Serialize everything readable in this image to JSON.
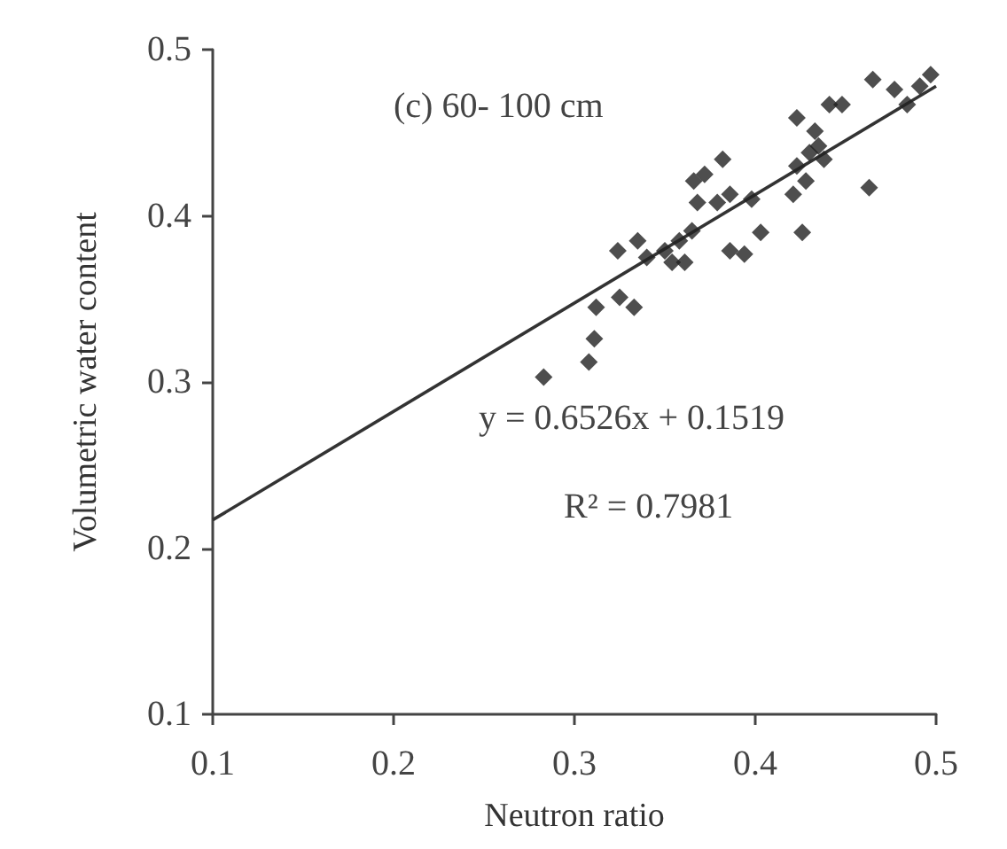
{
  "chart_data": {
    "type": "scatter",
    "xlabel": "Neutron ratio",
    "ylabel": "Volumetric water content",
    "annotations": [
      "(c) 60- 100 cm",
      "y = 0.6526x + 0.1519",
      "R² = 0.7981"
    ],
    "xlim": [
      0.1,
      0.5
    ],
    "ylim": [
      0.1,
      0.5
    ],
    "xticks": [
      0.1,
      0.2,
      0.3,
      0.4,
      0.5
    ],
    "yticks": [
      0.1,
      0.2,
      0.3,
      0.4,
      0.5
    ],
    "grid": false,
    "marker": "diamond",
    "series": [
      {
        "color": "#222222",
        "x": [
          0.283,
          0.308,
          0.311,
          0.312,
          0.325,
          0.333,
          0.324,
          0.335,
          0.34,
          0.35,
          0.354,
          0.358,
          0.361,
          0.365,
          0.366,
          0.368,
          0.372,
          0.382,
          0.379,
          0.386,
          0.386,
          0.394,
          0.398,
          0.403,
          0.421,
          0.423,
          0.423,
          0.426,
          0.428,
          0.43,
          0.433,
          0.435,
          0.438,
          0.441,
          0.448,
          0.463,
          0.465,
          0.477,
          0.484,
          0.491,
          0.497
        ],
        "values": [
          0.303,
          0.312,
          0.326,
          0.345,
          0.351,
          0.345,
          0.379,
          0.385,
          0.375,
          0.379,
          0.372,
          0.385,
          0.372,
          0.391,
          0.421,
          0.408,
          0.425,
          0.434,
          0.408,
          0.413,
          0.379,
          0.377,
          0.41,
          0.39,
          0.413,
          0.43,
          0.459,
          0.39,
          0.421,
          0.438,
          0.451,
          0.442,
          0.434,
          0.467,
          0.467,
          0.417,
          0.482,
          0.476,
          0.467,
          0.478,
          0.485
        ]
      },
      {
        "type": "line",
        "color": "#333333",
        "x": [
          0.1,
          0.5
        ],
        "values": [
          0.217,
          0.478
        ],
        "marker": "none",
        "line_style": "solid"
      }
    ]
  }
}
